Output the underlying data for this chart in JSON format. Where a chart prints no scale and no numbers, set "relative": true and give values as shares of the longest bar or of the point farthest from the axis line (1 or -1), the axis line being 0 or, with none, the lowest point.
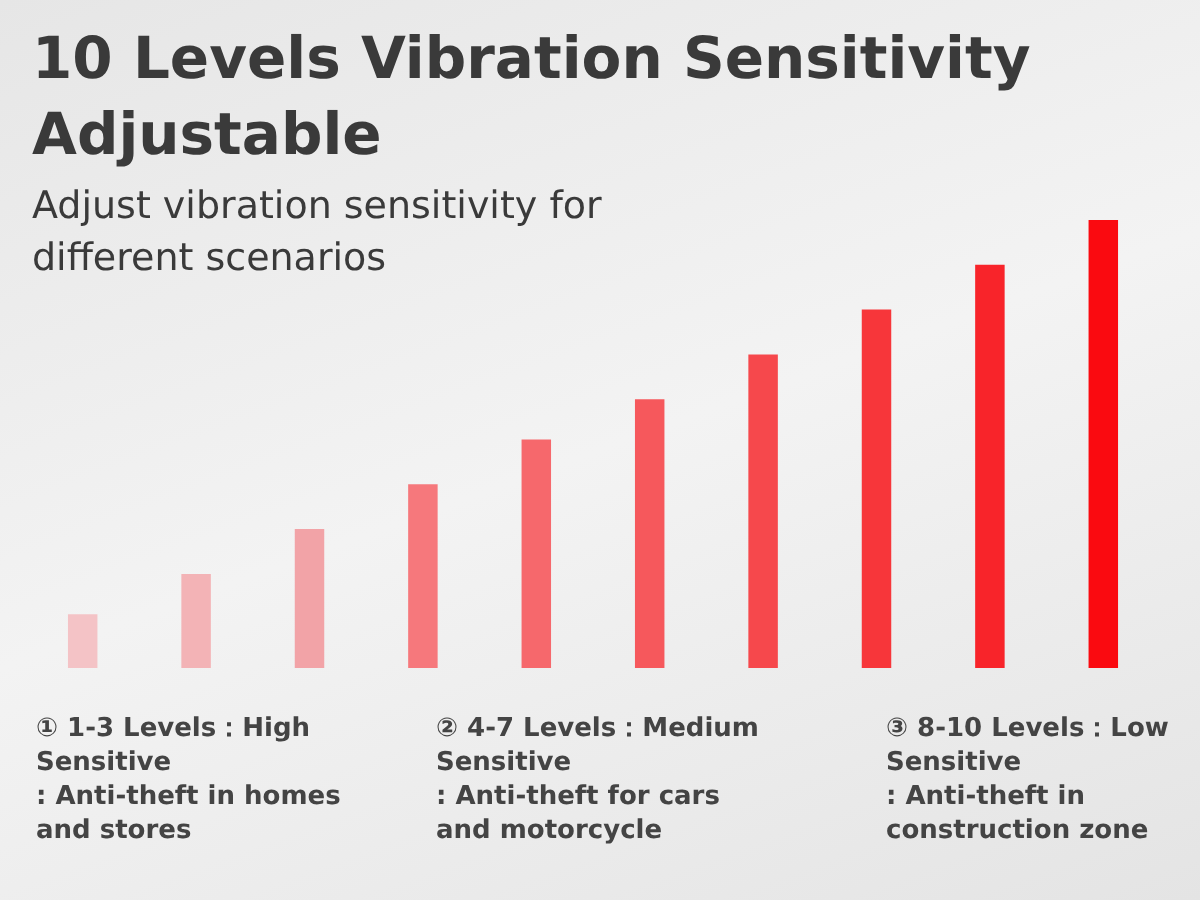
{
  "chart_data": {
    "type": "bar",
    "relative": true,
    "title": "10 Levels Vibration Sensitivity Adjustable",
    "subtitle": "Adjust vibration sensitivity for different scenarios",
    "categories": [
      null,
      null,
      null,
      null,
      null,
      null,
      null,
      null,
      null,
      null
    ],
    "values": [
      0.12,
      0.21,
      0.31,
      0.41,
      0.51,
      0.6,
      0.7,
      0.8,
      0.9,
      1
    ],
    "colors": [
      "#f4c3c6",
      "#f3b3b6",
      "#f2a3a7",
      "#f6787c",
      "#f6686c",
      "#f6585c",
      "#f6484c",
      "#f7363a",
      "#f8242a",
      "#fa0a10"
    ],
    "annotations": [
      "① 1-3 Levels：High Sensitive\n: Anti-theft in homes and stores",
      "② 4-7 Levels：Medium Sensitive\n: Anti-theft for cars and motorcycle",
      "③ 8-10 Levels：Low Sensitive\n: Anti-theft in construction zone"
    ]
  }
}
